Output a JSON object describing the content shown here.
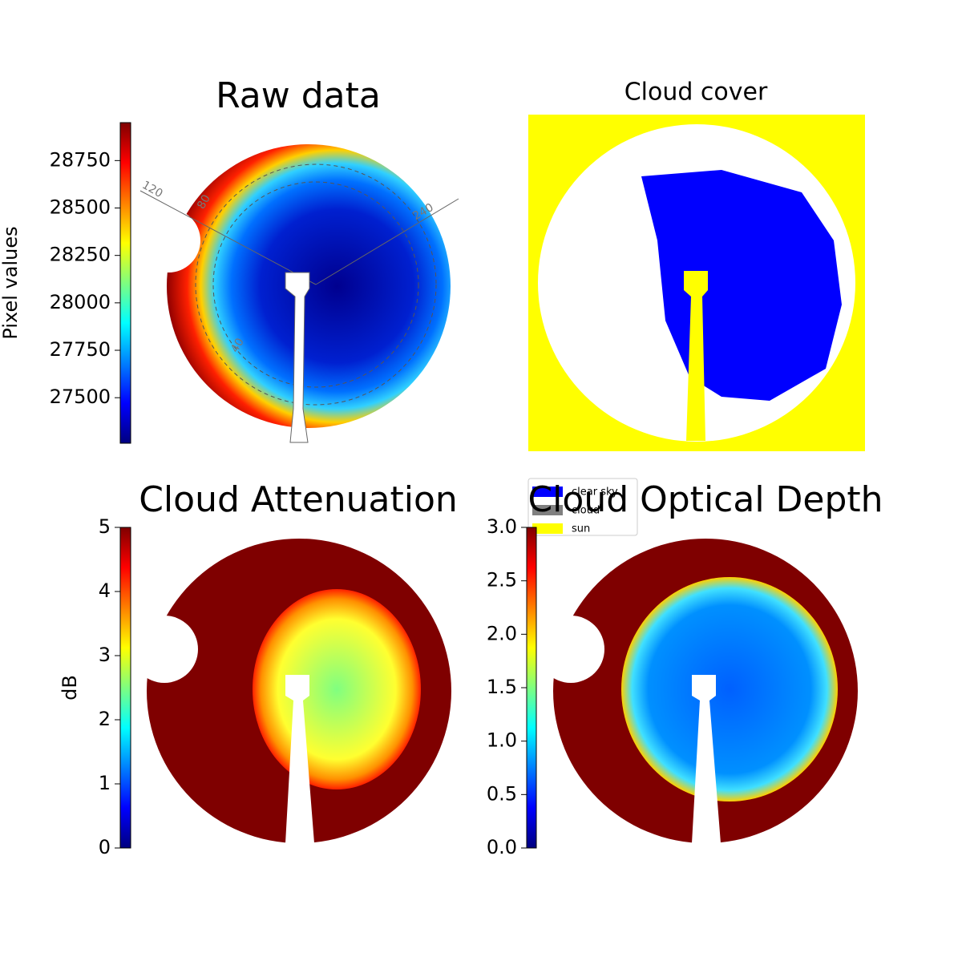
{
  "chart_data": [
    {
      "type": "image",
      "title": "Raw data",
      "colorbar_label": "Pixel values",
      "clim": [
        27260,
        28950
      ],
      "cticks": [
        27500,
        27750,
        28000,
        28250,
        28500,
        28750
      ],
      "annotations": [
        "120",
        "80",
        "240",
        "40"
      ]
    },
    {
      "type": "categorical",
      "title": "Cloud cover",
      "series": [
        {
          "name": "clear sky",
          "color": "#0000ff"
        },
        {
          "name": "cloud",
          "color": "#808080"
        },
        {
          "name": "sun",
          "color": "#ffff00"
        }
      ]
    },
    {
      "type": "image",
      "title": "Cloud Attenuation",
      "colorbar_label": "dB",
      "clim": [
        0,
        5
      ],
      "cticks": [
        0,
        1,
        2,
        3,
        4,
        5
      ]
    },
    {
      "type": "image",
      "title": "Cloud Optical Depth",
      "clim": [
        0,
        3
      ],
      "cticks": [
        {
          "value": 0,
          "label": "0.0"
        },
        0.5,
        {
          "value": 1,
          "label": "1.0"
        },
        1.5,
        {
          "value": 2,
          "label": "2.0"
        },
        2.5,
        {
          "value": 3,
          "label": "3.0"
        }
      ]
    }
  ]
}
